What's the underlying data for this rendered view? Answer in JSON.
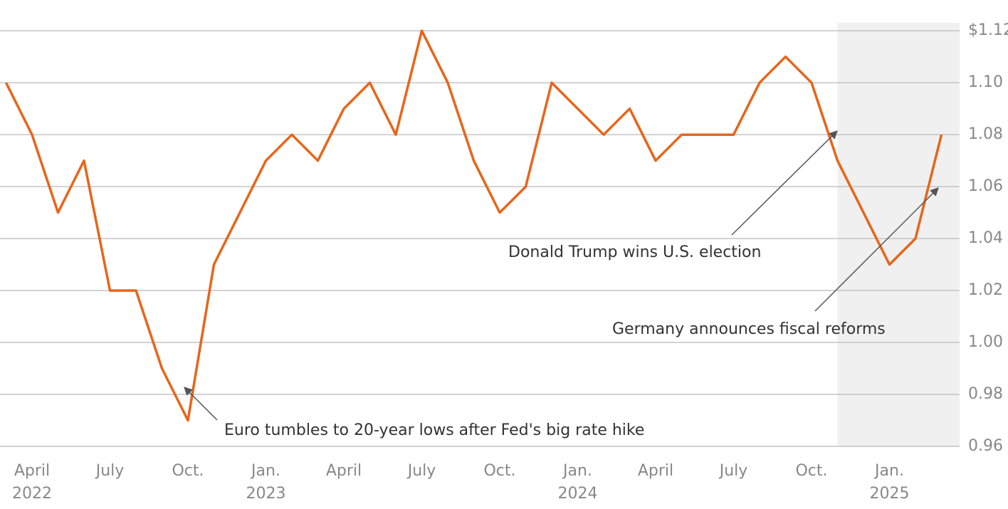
{
  "chart_data": {
    "type": "line",
    "x": [
      "2022-03",
      "2022-04",
      "2022-05",
      "2022-06",
      "2022-07",
      "2022-08",
      "2022-09",
      "2022-10",
      "2022-11",
      "2022-12",
      "2023-01",
      "2023-02",
      "2023-03",
      "2023-04",
      "2023-05",
      "2023-06",
      "2023-07",
      "2023-08",
      "2023-09",
      "2023-10",
      "2023-11",
      "2023-12",
      "2024-01",
      "2024-02",
      "2024-03",
      "2024-04",
      "2024-05",
      "2024-06",
      "2024-07",
      "2024-08",
      "2024-09",
      "2024-10",
      "2024-11",
      "2024-12",
      "2025-01",
      "2025-02",
      "2025-03"
    ],
    "values": [
      1.1,
      1.08,
      1.05,
      1.07,
      1.02,
      1.02,
      0.99,
      0.97,
      1.03,
      1.05,
      1.07,
      1.08,
      1.07,
      1.09,
      1.1,
      1.08,
      1.12,
      1.1,
      1.07,
      1.05,
      1.06,
      1.1,
      1.09,
      1.08,
      1.09,
      1.07,
      1.08,
      1.08,
      1.08,
      1.1,
      1.11,
      1.1,
      1.07,
      1.05,
      1.03,
      1.04,
      1.08
    ],
    "color": "#e8651a",
    "xlim": [
      "2022-03",
      "2025-03"
    ],
    "xticks": [
      {
        "value": "2022-04",
        "label": "April\n2022"
      },
      {
        "value": "2022-07",
        "label": "July"
      },
      {
        "value": "2022-10",
        "label": "Oct."
      },
      {
        "value": "2023-01",
        "label": "Jan.\n2023"
      },
      {
        "value": "2023-04",
        "label": "April"
      },
      {
        "value": "2023-07",
        "label": "July"
      },
      {
        "value": "2023-10",
        "label": "Oct."
      },
      {
        "value": "2024-01",
        "label": "Jan.\n2024"
      },
      {
        "value": "2024-04",
        "label": "April"
      },
      {
        "value": "2024-07",
        "label": "July"
      },
      {
        "value": "2024-10",
        "label": "Oct."
      },
      {
        "value": "2025-01",
        "label": "Jan.\n2025"
      }
    ],
    "ylim": [
      0.96,
      1.125
    ],
    "yticks": [
      0.96,
      0.98,
      {
        "value": 1.0,
        "label": "1.00"
      },
      1.02,
      1.04,
      1.06,
      1.08,
      {
        "value": 1.1,
        "label": "1.10"
      },
      {
        "value": 1.12,
        "label": "$1.12"
      }
    ],
    "grid": true,
    "shaded_from": "2024-11",
    "annotations": [
      "Euro tumbles to 20-year lows after Fed's big rate hike",
      "Donald Trump wins U.S. election",
      "Germany announces fiscal reforms"
    ]
  }
}
